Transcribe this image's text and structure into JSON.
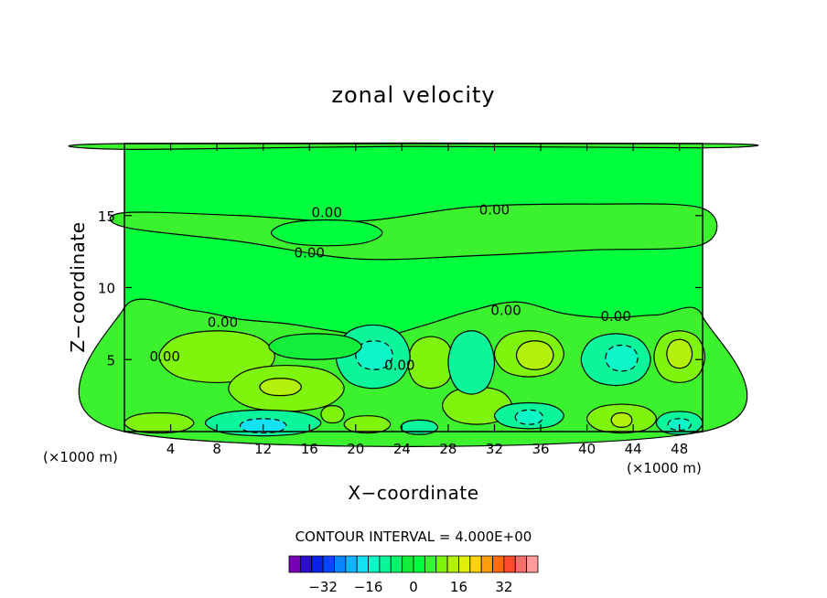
{
  "chart_data": {
    "type": "heatmap",
    "title": "zonal velocity",
    "xlabel": "X−coordinate",
    "ylabel": "Z−coordinate",
    "x_units_left": "(×1000 m)",
    "x_units_right": "(×1000 m)",
    "xlim": [
      0,
      50
    ],
    "ylim": [
      0,
      20
    ],
    "x_ticks": [
      4,
      8,
      12,
      16,
      20,
      24,
      28,
      32,
      36,
      40,
      44,
      48
    ],
    "y_ticks": [
      5,
      10,
      15
    ],
    "contour_labels": [
      {
        "text": "0.00",
        "x": 17.5,
        "y": 15.2
      },
      {
        "text": "0.00",
        "x": 32.0,
        "y": 15.4
      },
      {
        "text": "0.00",
        "x": 16.0,
        "y": 12.4
      },
      {
        "text": "0.00",
        "x": 8.5,
        "y": 7.6
      },
      {
        "text": "0.00",
        "x": 3.5,
        "y": 5.2
      },
      {
        "text": "0.00",
        "x": 23.8,
        "y": 4.6
      },
      {
        "text": "0.00",
        "x": 33.0,
        "y": 8.4
      },
      {
        "text": "0.00",
        "x": 42.5,
        "y": 8.0
      }
    ],
    "contour_interval_text": "CONTOUR INTERVAL = 4.000E+00",
    "colorbar": {
      "colors": [
        "#7a00b8",
        "#2d0ccc",
        "#0b23e8",
        "#0546ff",
        "#0a86ff",
        "#12b4ff",
        "#14e1f2",
        "#0ef5c7",
        "#0bf59a",
        "#0af26c",
        "#13ee3a",
        "#00ff3c",
        "#3cf22e",
        "#7ff40d",
        "#b3f00a",
        "#dfef0a",
        "#ffd300",
        "#ff9d0a",
        "#ff6a0e",
        "#ff4a2e",
        "#ff6e6a",
        "#ff9d9d"
      ],
      "tick_labels": [
        "−32",
        "−16",
        "0",
        "16",
        "32"
      ],
      "tick_values": [
        -32,
        -16,
        0,
        16,
        32
      ]
    },
    "fields": {
      "background": "#00ff3c",
      "positive_light": "#3cf22e",
      "positive_mid": "#7ff40d",
      "positive_strong": "#b3f00a",
      "negative_light": "#13ee3a",
      "negative_mid": "#0bf59a",
      "negative_strong": "#0ef5c7",
      "negative_core": "#14e1f2"
    }
  }
}
